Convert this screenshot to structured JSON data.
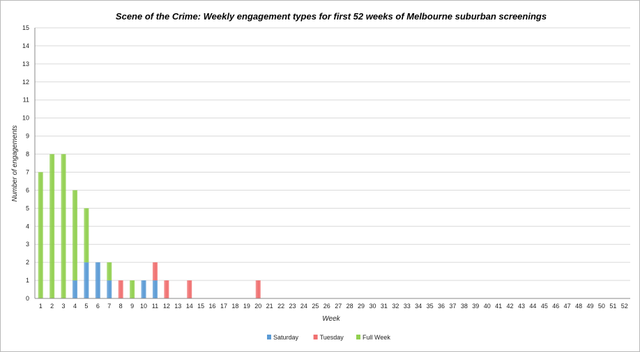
{
  "chart_data": {
    "type": "bar",
    "stacked": true,
    "title": "Scene of the Crime: Weekly engagement types for first 52 weeks of Melbourne suburban screenings",
    "xlabel": "Week",
    "ylabel": "Number of engagements",
    "ylim": [
      0,
      15
    ],
    "y_ticks": [
      0,
      1,
      2,
      3,
      4,
      5,
      6,
      7,
      8,
      9,
      10,
      11,
      12,
      13,
      14,
      15
    ],
    "categories": [
      "1",
      "2",
      "3",
      "4",
      "5",
      "6",
      "7",
      "8",
      "9",
      "10",
      "11",
      "12",
      "13",
      "14",
      "15",
      "16",
      "17",
      "18",
      "19",
      "20",
      "21",
      "22",
      "23",
      "24",
      "25",
      "26",
      "27",
      "28",
      "29",
      "30",
      "31",
      "32",
      "33",
      "34",
      "35",
      "36",
      "37",
      "38",
      "39",
      "40",
      "41",
      "42",
      "43",
      "44",
      "45",
      "46",
      "47",
      "48",
      "49",
      "50",
      "51",
      "52"
    ],
    "series": [
      {
        "name": "Saturday",
        "color": "#5b9bd5",
        "values": [
          0,
          0,
          0,
          1,
          2,
          2,
          1,
          0,
          0,
          1,
          1,
          0,
          0,
          0,
          0,
          0,
          0,
          0,
          0,
          0,
          0,
          0,
          0,
          0,
          0,
          0,
          0,
          0,
          0,
          0,
          0,
          0,
          0,
          0,
          0,
          0,
          0,
          0,
          0,
          0,
          0,
          0,
          0,
          0,
          0,
          0,
          0,
          0,
          0,
          0,
          0,
          0
        ]
      },
      {
        "name": "Tuesday",
        "color": "#f07070",
        "values": [
          0,
          0,
          0,
          0,
          0,
          0,
          0,
          1,
          0,
          0,
          1,
          1,
          0,
          1,
          0,
          0,
          0,
          0,
          0,
          1,
          0,
          0,
          0,
          0,
          0,
          0,
          0,
          0,
          0,
          0,
          0,
          0,
          0,
          0,
          0,
          0,
          0,
          0,
          0,
          0,
          0,
          0,
          0,
          0,
          0,
          0,
          0,
          0,
          0,
          0,
          0,
          0
        ]
      },
      {
        "name": "Full Week",
        "color": "#92d050",
        "values": [
          7,
          8,
          8,
          5,
          3,
          0,
          1,
          0,
          1,
          0,
          0,
          0,
          0,
          0,
          0,
          0,
          0,
          0,
          0,
          0,
          0,
          0,
          0,
          0,
          0,
          0,
          0,
          0,
          0,
          0,
          0,
          0,
          0,
          0,
          0,
          0,
          0,
          0,
          0,
          0,
          0,
          0,
          0,
          0,
          0,
          0,
          0,
          0,
          0,
          0,
          0,
          0
        ]
      }
    ],
    "grid": true,
    "legend_position": "bottom"
  }
}
